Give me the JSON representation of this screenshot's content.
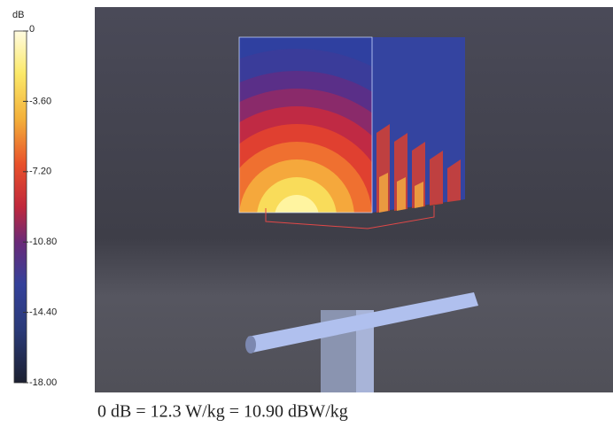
{
  "colorbar": {
    "unit": "dB",
    "labels": [
      "0",
      "-3.60",
      "-7.20",
      "-10.80",
      "-14.40",
      "-18.00"
    ]
  },
  "caption": "0 dB = 12.3 W/kg = 10.90 dBW/kg"
}
